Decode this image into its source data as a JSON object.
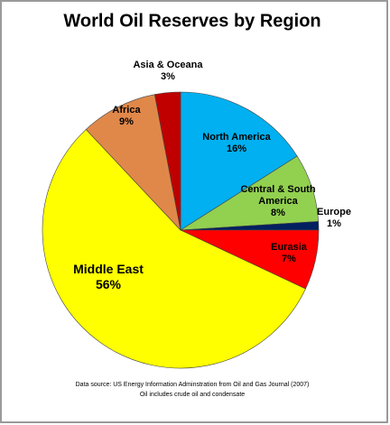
{
  "chart_data": {
    "type": "pie",
    "title": "World Oil Reserves by Region",
    "categories": [
      "North America",
      "Central & South America",
      "Europe",
      "Eurasia",
      "Middle East",
      "Africa",
      "Asia & Oceana"
    ],
    "values": [
      16,
      8,
      1,
      7,
      56,
      9,
      3
    ],
    "value_labels": [
      "16%",
      "8%",
      "1%",
      "7%",
      "56%",
      "9%",
      "3%"
    ],
    "colors": [
      "#00b0f0",
      "#92d050",
      "#002060",
      "#ff0000",
      "#ffff00",
      "#e0884a",
      "#c00000"
    ],
    "source": [
      "Data source: US Energy Information Adminstration from  Oil and Gas Journal (2007)",
      "Oil includes crude oil and condensate"
    ]
  }
}
